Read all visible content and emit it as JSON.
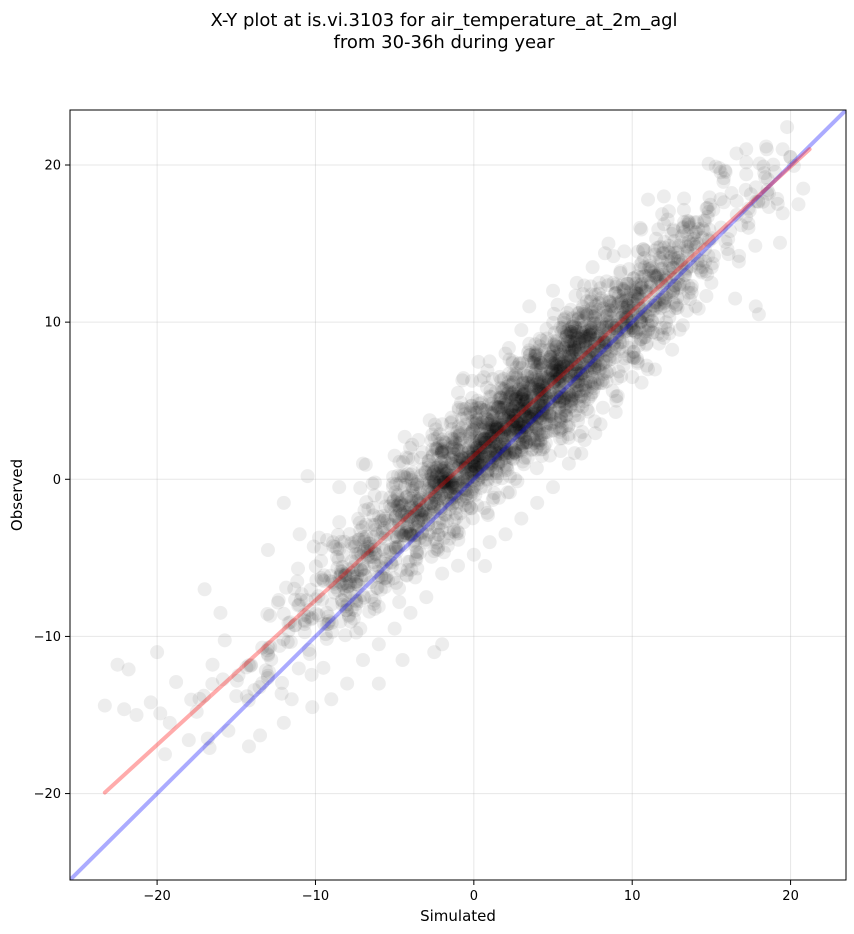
{
  "chart_data": {
    "type": "scatter",
    "title_lines": [
      "X-Y plot at is.vi.3103 for air_temperature_at_2m_agl",
      "from 30-36h during year"
    ],
    "xlabel": "Simulated",
    "ylabel": "Observed",
    "xlim": [
      -25.5,
      23.5
    ],
    "ylim": [
      -25.5,
      23.5
    ],
    "xticks": [
      -20,
      -10,
      0,
      10,
      20
    ],
    "yticks": [
      -20,
      -10,
      0,
      10,
      20
    ],
    "xtick_labels": [
      "−20",
      "−10",
      "0",
      "10",
      "20"
    ],
    "ytick_labels": [
      "−20",
      "−10",
      "0",
      "10",
      "20"
    ],
    "grid": true,
    "scatter_style": {
      "color": "#000000",
      "opacity": 0.07
    },
    "points_summary": {
      "fit_slope": 0.92,
      "fit_intercept": 1.5,
      "x_range": [
        -24,
        21
      ]
    },
    "points": [
      [
        -23.3,
        -14.4
      ],
      [
        -22.5,
        -11.8
      ],
      [
        -21.8,
        -12.1
      ],
      [
        -21.3,
        -15.0
      ],
      [
        -20.4,
        -14.2
      ],
      [
        -20.0,
        -11.0
      ],
      [
        -19.8,
        -14.9
      ],
      [
        -19.5,
        -17.5
      ],
      [
        -19.2,
        -15.5
      ],
      [
        -18.8,
        -12.9
      ],
      [
        -18.0,
        -16.6
      ],
      [
        -17.5,
        -14.8
      ],
      [
        -16.8,
        -16.5
      ],
      [
        -16.5,
        -11.8
      ],
      [
        -15.5,
        -16.0
      ],
      [
        -15.0,
        -13.8
      ],
      [
        -14.2,
        -17.0
      ],
      [
        -13.5,
        -16.3
      ],
      [
        -12.0,
        -15.5
      ],
      [
        -13.0,
        -12.5
      ],
      [
        -11.5,
        -14.0
      ],
      [
        -10.2,
        -14.5
      ],
      [
        -9.5,
        -12.0
      ],
      [
        -17.0,
        -7.0
      ],
      [
        -16.0,
        -8.5
      ],
      [
        -13.0,
        -4.5
      ],
      [
        -12.0,
        -1.5
      ],
      [
        -11.0,
        -3.5
      ],
      [
        -10.5,
        0.2
      ],
      [
        -8.5,
        -0.5
      ],
      [
        -7.0,
        1.0
      ],
      [
        -5.0,
        1.5
      ],
      [
        -3.5,
        2.5
      ],
      [
        -2.0,
        3.5
      ],
      [
        -1.0,
        5.5
      ],
      [
        -0.5,
        4.5
      ],
      [
        1.0,
        7.5
      ],
      [
        2.0,
        8.0
      ],
      [
        3.0,
        9.5
      ],
      [
        3.5,
        11.0
      ],
      [
        5.0,
        12.0
      ],
      [
        6.5,
        12.5
      ],
      [
        7.5,
        13.5
      ],
      [
        8.5,
        15.0
      ],
      [
        9.5,
        14.5
      ],
      [
        10.5,
        16.0
      ],
      [
        11.0,
        17.8
      ],
      [
        12.0,
        18.0
      ],
      [
        15.5,
        19.8
      ],
      [
        17.2,
        21.0
      ],
      [
        18.5,
        21.0
      ],
      [
        19.5,
        21.0
      ],
      [
        20.0,
        20.5
      ],
      [
        20.8,
        18.5
      ],
      [
        20.5,
        17.5
      ],
      [
        18.0,
        10.5
      ],
      [
        17.8,
        11.0
      ],
      [
        16.5,
        11.5
      ],
      [
        15.0,
        12.5
      ],
      [
        14.0,
        11.0
      ],
      [
        13.2,
        9.8
      ],
      [
        12.0,
        9.0
      ],
      [
        11.0,
        7.0
      ],
      [
        10.0,
        6.5
      ],
      [
        9.0,
        5.0
      ],
      [
        8.0,
        3.5
      ],
      [
        7.0,
        2.5
      ],
      [
        6.0,
        1.0
      ],
      [
        5.0,
        -0.5
      ],
      [
        4.0,
        -1.5
      ],
      [
        3.0,
        -2.5
      ],
      [
        2.0,
        -3.5
      ],
      [
        1.0,
        -4.0
      ],
      [
        0.0,
        -4.8
      ],
      [
        -1.0,
        -5.5
      ],
      [
        -2.0,
        -6.0
      ],
      [
        -3.0,
        -7.5
      ],
      [
        -4.0,
        -8.5
      ],
      [
        -5.0,
        -9.5
      ],
      [
        -6.0,
        -10.5
      ],
      [
        -7.0,
        -11.5
      ],
      [
        -6.0,
        -13.0
      ],
      [
        -4.5,
        -11.5
      ],
      [
        -2.5,
        -11.0
      ],
      [
        -2.0,
        -10.5
      ],
      [
        -8.0,
        -13.0
      ],
      [
        -9.0,
        -14.0
      ]
    ]
  }
}
